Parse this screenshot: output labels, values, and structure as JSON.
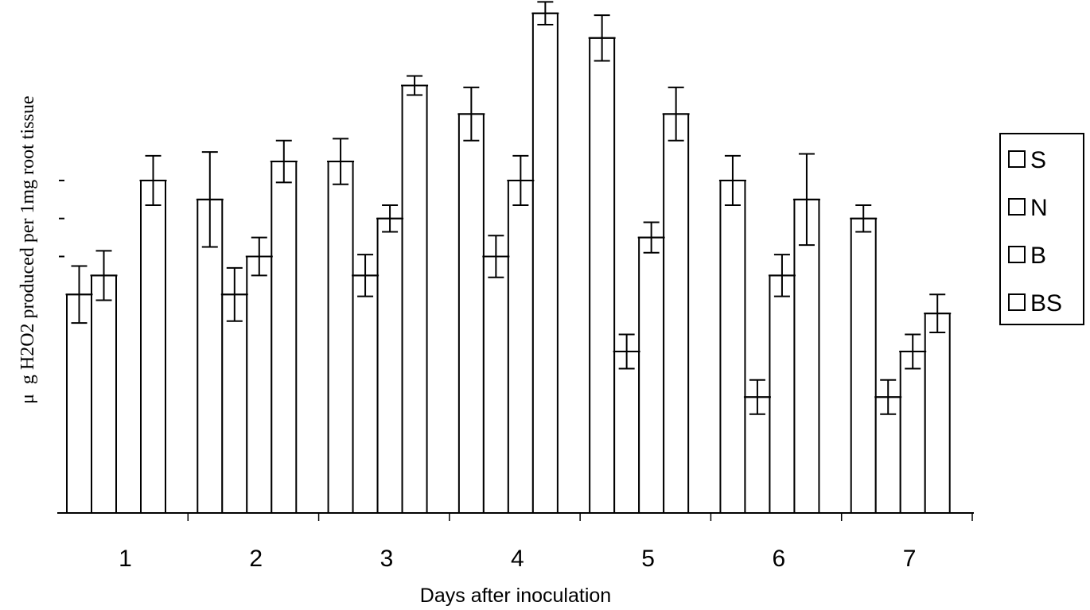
{
  "chart_data": {
    "type": "bar",
    "title": "",
    "xlabel": "Days after inoculation",
    "ylabel_prefix": "μ",
    "ylabel": "g H2O2  produced per 1mg root tissue",
    "ylim": [
      0,
      27
    ],
    "y_tick_values": [
      13.5,
      15.5,
      17.5
    ],
    "categories": [
      "1",
      "2",
      "3",
      "4",
      "5",
      "6",
      "7"
    ],
    "series": [
      {
        "name": "S",
        "values": [
          11.5,
          16.5,
          18.5,
          21,
          25,
          17.5,
          15.5
        ],
        "errors": [
          1.5,
          2.5,
          1.2,
          1.4,
          1.2,
          1.3,
          0.7
        ]
      },
      {
        "name": "N",
        "values": [
          12.5,
          11.5,
          12.5,
          13.5,
          8.5,
          6.1,
          6.1
        ],
        "errors": [
          1.3,
          1.4,
          1.1,
          1.1,
          0.9,
          0.9,
          0.9
        ]
      },
      {
        "name": "B",
        "values": [
          0,
          13.5,
          15.5,
          17.5,
          14.5,
          12.5,
          8.5
        ],
        "errors": [
          0,
          1.0,
          0.7,
          1.3,
          0.8,
          1.1,
          0.9
        ]
      },
      {
        "name": "BS",
        "values": [
          17.5,
          18.5,
          22.5,
          26.3,
          21,
          16.5,
          10.5
        ],
        "errors": [
          1.3,
          1.1,
          0.5,
          0.6,
          1.4,
          2.4,
          1.0
        ]
      }
    ],
    "legend_position": "right",
    "grid": false,
    "colors": {
      "bar_fill": "#ffffff",
      "bar_stroke": "#000000",
      "background": "#ffffff"
    }
  }
}
